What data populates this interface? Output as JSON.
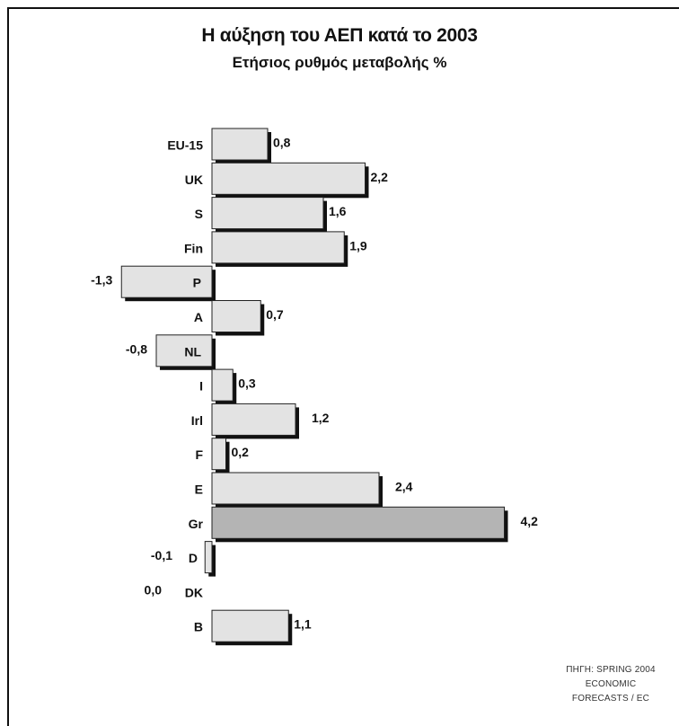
{
  "chart_data": {
    "type": "bar",
    "orientation": "horizontal",
    "title": "Η αύξηση του ΑΕΠ κατά το 2003",
    "subtitle": "Ετήσιος ρυθμός μεταβολής %",
    "categories": [
      "EU-15",
      "UK",
      "S",
      "Fin",
      "P",
      "A",
      "NL",
      "I",
      "Irl",
      "F",
      "E",
      "Gr",
      "D",
      "DK",
      "B"
    ],
    "values": [
      0.8,
      2.2,
      1.6,
      1.9,
      -1.3,
      0.7,
      -0.8,
      0.3,
      1.2,
      0.2,
      2.4,
      4.2,
      -0.1,
      0.0,
      1.1
    ],
    "value_labels": [
      "0,8",
      "2,2",
      "1,6",
      "1,9",
      "-1,3",
      "0,7",
      "-0,8",
      "0,3",
      "1,2",
      "0,2",
      "2,4",
      "4,2",
      "-0,1",
      "0,0",
      "1,1"
    ],
    "highlight_category": "Gr",
    "bar_color": "#e3e3e3",
    "highlight_color": "#b4b4b4",
    "shadow_color": "#111111",
    "source": [
      "ΠΗΓΗ: SPRING 2004",
      "ECONOMIC",
      "FORECASTS / EC"
    ]
  }
}
